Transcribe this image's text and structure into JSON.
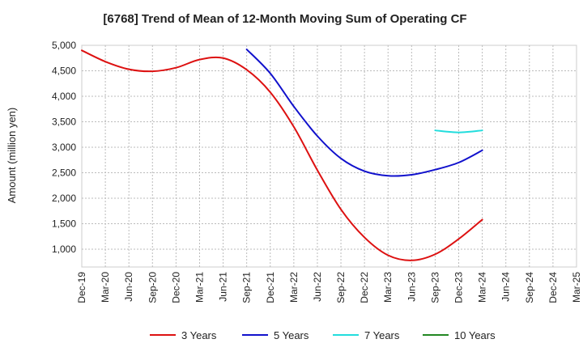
{
  "chart_data": {
    "type": "line",
    "title": "[6768]  Trend of Mean of 12-Month Moving Sum of Operating CF",
    "xlabel": "",
    "ylabel": "Amount (million yen)",
    "ylim": [
      650,
      5000
    ],
    "yticks": [
      1000,
      1500,
      2000,
      2500,
      3000,
      3500,
      4000,
      4500,
      5000
    ],
    "ytick_labels": [
      "1,000",
      "1,500",
      "2,000",
      "2,500",
      "3,000",
      "3,500",
      "4,000",
      "4,500",
      "5,000"
    ],
    "categories": [
      "Dec-19",
      "Mar-20",
      "Jun-20",
      "Sep-20",
      "Dec-20",
      "Mar-21",
      "Jun-21",
      "Sep-21",
      "Dec-21",
      "Mar-22",
      "Jun-22",
      "Sep-22",
      "Dec-22",
      "Mar-23",
      "Jun-23",
      "Sep-23",
      "Dec-23",
      "Mar-24",
      "Jun-24",
      "Sep-24",
      "Dec-24",
      "Mar-25"
    ],
    "grid": true,
    "legend_position": "bottom",
    "series": [
      {
        "name": "3 Years",
        "color": "#dd1111",
        "values": [
          4900,
          4680,
          4530,
          4490,
          4560,
          4720,
          4750,
          4520,
          4080,
          3400,
          2550,
          1780,
          1230,
          880,
          780,
          900,
          1200,
          1580,
          null,
          null,
          null,
          null
        ]
      },
      {
        "name": "5 Years",
        "color": "#1111cc",
        "values": [
          null,
          null,
          null,
          null,
          null,
          null,
          null,
          4920,
          4450,
          3800,
          3220,
          2780,
          2530,
          2440,
          2460,
          2560,
          2700,
          2940,
          null,
          null,
          null,
          null
        ]
      },
      {
        "name": "7 Years",
        "color": "#22dddd",
        "values": [
          null,
          null,
          null,
          null,
          null,
          null,
          null,
          null,
          null,
          null,
          null,
          null,
          null,
          null,
          null,
          3330,
          3290,
          3330,
          null,
          null,
          null,
          null
        ]
      },
      {
        "name": "10 Years",
        "color": "#228822",
        "values": [
          null,
          null,
          null,
          null,
          null,
          null,
          null,
          null,
          null,
          null,
          null,
          null,
          null,
          null,
          null,
          null,
          null,
          null,
          null,
          null,
          null,
          null
        ]
      }
    ]
  }
}
